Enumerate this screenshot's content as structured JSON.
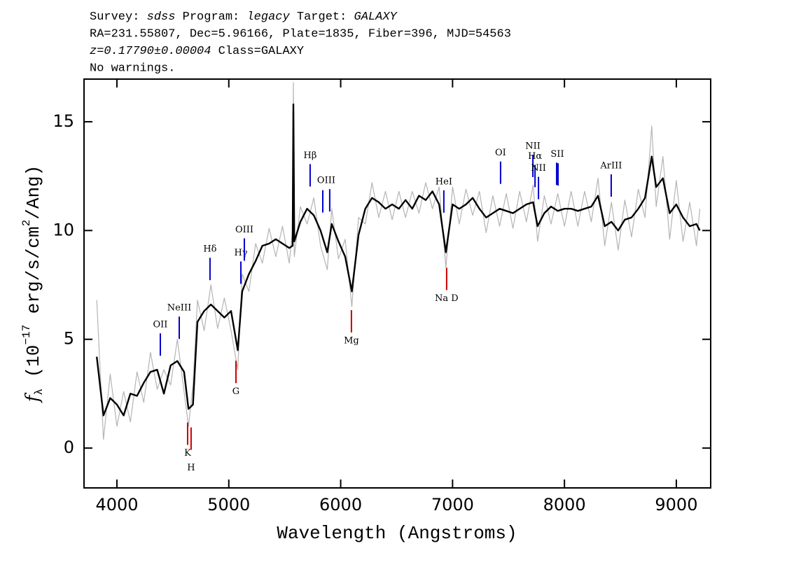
{
  "chart_data": {
    "type": "line",
    "header_lines": [
      [
        {
          "text": "Survey: ",
          "italic": false
        },
        {
          "text": "sdss",
          "italic": true
        },
        {
          "text": " Program: ",
          "italic": false
        },
        {
          "text": "legacy",
          "italic": true
        },
        {
          "text": " Target: ",
          "italic": false
        },
        {
          "text": "GALAXY",
          "italic": true
        }
      ],
      [
        {
          "text": "RA=231.55807, Dec=5.96166, Plate=1835, Fiber=396, MJD=54563",
          "italic": false
        }
      ],
      [
        {
          "text": "z=0.17790±0.00004",
          "italic": true
        },
        {
          "text": " Class=GALAXY",
          "italic": false
        }
      ],
      [
        {
          "text": "No warnings.",
          "italic": false
        }
      ]
    ],
    "x_label": "Wavelength (Angstroms)",
    "y_label": [
      {
        "text": "f",
        "italic": true,
        "shift": "baseline"
      },
      {
        "text": "λ",
        "italic": false,
        "shift": "sub"
      },
      {
        "text": " (10",
        "italic": false,
        "shift": "baseline"
      },
      {
        "text": "−17",
        "italic": false,
        "shift": "super"
      },
      {
        "text": " erg/s/cm",
        "italic": false,
        "shift": "baseline"
      },
      {
        "text": "2",
        "italic": false,
        "shift": "super"
      },
      {
        "text": "/Ang)",
        "italic": false,
        "shift": "baseline"
      }
    ],
    "xlim": [
      3706,
      9307
    ],
    "xticks": [
      4000,
      5000,
      6000,
      7000,
      8000,
      9000
    ],
    "ylim": [
      -1.83,
      16.96
    ],
    "yticks": [
      0,
      5,
      10,
      15
    ],
    "x": [
      3820,
      3880,
      3940,
      4000,
      4060,
      4120,
      4180,
      4240,
      4300,
      4360,
      4420,
      4480,
      4540,
      4600,
      4640,
      4680,
      4720,
      4780,
      4840,
      4900,
      4960,
      5020,
      5080,
      5120,
      5180,
      5240,
      5300,
      5360,
      5420,
      5480,
      5540,
      5570,
      5577,
      5585,
      5640,
      5700,
      5760,
      5820,
      5880,
      5920,
      5980,
      6040,
      6100,
      6160,
      6220,
      6280,
      6340,
      6400,
      6460,
      6520,
      6580,
      6640,
      6700,
      6760,
      6820,
      6880,
      6940,
      7000,
      7060,
      7120,
      7180,
      7240,
      7300,
      7360,
      7420,
      7480,
      7540,
      7600,
      7660,
      7720,
      7760,
      7820,
      7880,
      7940,
      8000,
      8060,
      8120,
      8180,
      8240,
      8300,
      8360,
      8420,
      8480,
      8540,
      8600,
      8660,
      8720,
      8780,
      8820,
      8880,
      8940,
      9000,
      9060,
      9120,
      9180,
      9210
    ],
    "series": [
      {
        "color": "#b4b4b4",
        "values": [
          6.8,
          0.4,
          3.4,
          1.0,
          2.6,
          1.2,
          3.5,
          2.1,
          4.4,
          2.7,
          3.6,
          2.9,
          5.0,
          2.6,
          1.0,
          2.9,
          6.8,
          5.4,
          7.5,
          5.5,
          6.9,
          5.4,
          3.6,
          8.0,
          7.2,
          9.4,
          8.5,
          10.1,
          8.8,
          10.2,
          8.5,
          10.0,
          16.8,
          8.8,
          11.1,
          10.3,
          11.5,
          9.3,
          8.2,
          11.0,
          8.7,
          9.6,
          6.5,
          10.6,
          10.3,
          12.2,
          10.6,
          11.8,
          10.5,
          11.8,
          10.6,
          11.8,
          10.8,
          12.2,
          11.0,
          12.0,
          8.3,
          12.0,
          10.3,
          11.9,
          10.7,
          11.8,
          9.9,
          11.6,
          10.2,
          11.7,
          10.1,
          11.8,
          10.4,
          12.1,
          9.5,
          11.6,
          10.3,
          11.7,
          10.2,
          11.8,
          10.2,
          11.8,
          10.4,
          12.4,
          9.3,
          11.3,
          9.1,
          11.4,
          9.7,
          11.9,
          10.6,
          14.8,
          11.1,
          13.4,
          9.6,
          12.3,
          9.5,
          11.3,
          9.3,
          11.0
        ]
      },
      {
        "color": "#000000",
        "values": [
          4.2,
          1.5,
          2.3,
          2.0,
          1.5,
          2.5,
          2.4,
          3.0,
          3.5,
          3.6,
          2.5,
          3.8,
          4.0,
          3.5,
          1.8,
          2.0,
          5.8,
          6.3,
          6.6,
          6.3,
          6.0,
          6.3,
          4.5,
          7.2,
          8.0,
          8.6,
          9.3,
          9.4,
          9.6,
          9.4,
          9.2,
          9.3,
          15.8,
          9.5,
          10.4,
          11.0,
          10.7,
          10.0,
          9.0,
          10.3,
          9.5,
          8.8,
          7.2,
          9.8,
          11.0,
          11.5,
          11.3,
          11.0,
          11.2,
          11.0,
          11.4,
          11.0,
          11.6,
          11.4,
          11.8,
          11.2,
          9.0,
          11.2,
          11.0,
          11.2,
          11.5,
          11.0,
          10.6,
          10.8,
          11.0,
          10.9,
          10.8,
          11.0,
          11.2,
          11.3,
          10.2,
          10.8,
          11.1,
          10.9,
          11.0,
          11.0,
          10.9,
          11.0,
          11.1,
          11.6,
          10.2,
          10.4,
          10.0,
          10.5,
          10.6,
          11.0,
          11.5,
          13.4,
          12.0,
          12.4,
          10.8,
          11.2,
          10.6,
          10.2,
          10.3,
          10.0
        ]
      }
    ],
    "lines": {
      "emission_color": "#0000cc",
      "absorption_color": "#cc0000",
      "emission": [
        {
          "label": "OII",
          "wavelengths": [
            4388
          ]
        },
        {
          "label": "NeIII",
          "wavelengths": [
            4557
          ]
        },
        {
          "label": "Hδ",
          "wavelengths": [
            4832
          ]
        },
        {
          "label": "Hγ",
          "wavelengths": [
            5108
          ]
        },
        {
          "label": "OIII",
          "wavelengths": [
            5139
          ]
        },
        {
          "label": "Hβ",
          "wavelengths": [
            5727
          ]
        },
        {
          "label": "OIII",
          "wavelengths": [
            5840,
            5902
          ]
        },
        {
          "label": "HeI",
          "wavelengths": [
            6922
          ]
        },
        {
          "label": "OI",
          "wavelengths": [
            7429
          ]
        },
        {
          "label": "NII",
          "wavelengths": [
            7718
          ]
        },
        {
          "label": "Hα",
          "wavelengths": [
            7737
          ]
        },
        {
          "label": "NII",
          "wavelengths": [
            7768
          ]
        },
        {
          "label": "SII",
          "wavelengths": [
            7930,
            7943
          ]
        },
        {
          "label": "ArIII",
          "wavelengths": [
            8418
          ]
        }
      ],
      "absorption": [
        {
          "label": "K",
          "wavelengths": [
            4632
          ]
        },
        {
          "label": "H",
          "wavelengths": [
            4663
          ]
        },
        {
          "label": "G",
          "wavelengths": [
            5064
          ]
        },
        {
          "label": "Mg",
          "wavelengths": [
            6096
          ]
        },
        {
          "label": "Na D",
          "wavelengths": [
            6947
          ]
        }
      ]
    }
  }
}
